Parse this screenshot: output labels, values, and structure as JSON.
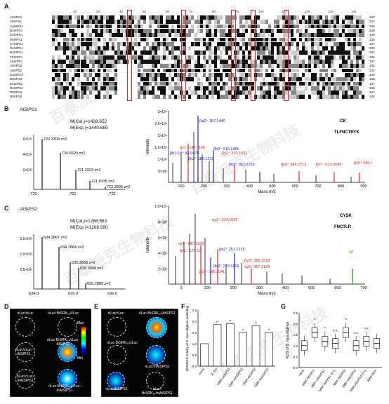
{
  "panels": {
    "A": "A",
    "B": "B",
    "C": "C",
    "D": "D",
    "E": "E",
    "F": "F",
    "G": "G"
  },
  "alignment": {
    "names": [
      "AtSIPS1",
      "AlSIPS1",
      "CgSIPS1",
      "BvSIPS1",
      "EsSIPS1",
      "MlSIPS1",
      "CvSIPS1",
      "RsSIPS1",
      "BoSIPS1",
      "ThSIPS1",
      "TgSIPS1",
      "AtSIPS2",
      "AlSIPS2",
      "CgSIPS2",
      "BrSIPS2",
      "EsSIPS2",
      "RsSIPS2",
      "TsSIPS2",
      "DlSIPS2"
    ],
    "ends": [
      "137",
      "137",
      "138",
      "138",
      "139",
      "138",
      "137",
      "139",
      "137",
      "136",
      "137",
      "136",
      "134",
      "138",
      "138",
      "137",
      "138",
      "137",
      "135"
    ],
    "ruler": [
      "20",
      "30",
      "40",
      "50",
      "60",
      "70",
      "80",
      "90",
      "100",
      "110",
      "120",
      "130",
      "140"
    ]
  },
  "panelB": {
    "protein": "AtSIPS1",
    "mcal": "M(Cal.)=1438.652",
    "mexp": "M(Exp.)=1440.669",
    "iso_peaks": [
      "720.3309 z=2",
      "720.8323 z=2",
      "721.3323 z=2",
      "721.8335 z=2",
      "722.3323 z=2"
    ],
    "iso_ylabels": [
      "6×10⁶",
      "4×10⁶",
      "2×10⁶"
    ],
    "iso_xticks": [
      "720",
      "721",
      "722"
    ],
    "ms_ylabels": [
      "3×10⁴",
      "2.5×10⁴",
      "2×10⁴",
      "1.5×10⁴",
      "1×10⁴",
      "5×10³"
    ],
    "ms_xticks": [
      "100",
      "200",
      "300",
      "400",
      "500",
      "600",
      "700",
      "800",
      "900"
    ],
    "ylabel": "Intensity",
    "xlabel": "Mass m/z",
    "ions": [
      "βa2⁺ 187.1440",
      "βb2⁺ 215.1466",
      "βy2⁺ 310.1831",
      "βb3⁺ 362.2150",
      "βy4⁺ 342.2713",
      "βy7⁺ 613.2645",
      "βy5⁺ 680.3813",
      "βb1-18⁺ 84.0475",
      "βy1⁺ 147.1146",
      "βb2⁺ 180.1219"
    ],
    "seq_top": "CK",
    "seq_bottom": "TLFNCTRYK"
  },
  "panelC": {
    "protein": "AtSIPS2",
    "mcal": "M(Cal.)=1266.563",
    "mexp": "M(Exp.)=1268.580",
    "iso_peaks": [
      "634.2867 z=2",
      "634.7884 z=2",
      "635.2868 z=2",
      "635.3906 z=2",
      "635.7883 z=2"
    ],
    "iso_ylabels": [
      "1.5×10⁶",
      "1.0×10⁶",
      "0.5×10⁶"
    ],
    "iso_xticks": [
      "634.0",
      "635.0",
      "636.0"
    ],
    "ms_ylabels": [
      "1.0×10⁴",
      "8×10³",
      "6×10³",
      "4×10³",
      "2×10³"
    ],
    "ms_xticks": [
      "0",
      "100",
      "200",
      "300",
      "400",
      "500",
      "600",
      "700"
    ],
    "ylabel": "Intensity",
    "xlabel": "Mass m/z",
    "ions": [
      "αy2⁺ 234.1522",
      "αy1⁺ 147.1266",
      "βa2⁺ 251.1211",
      "βy1⁺ 175.12",
      "βb2⁺ 279.1158",
      "βy3⁺ 389.2518",
      "βy2⁺ 288.2041",
      "αy3⁺ 397.2154",
      "M"
    ],
    "seq_top": "CYSK",
    "seq_bottom": "FNCTLR"
  },
  "panelD": {
    "labels": [
      "nLuc-BrSRK₆₀/cLuc",
      "nLuc/cLuc",
      "nLuc-BrSRK₆₀/cLuc-AtSIPS1",
      "nLuc/cLuc-AtSIPS1",
      "nLuc/cLuc-mAtSIPS1",
      "nLuc-BrSRK₆₀/cLuc-mAtSIPS1"
    ],
    "scale_max": "Max",
    "scale_min": "Min"
  },
  "panelE": {
    "labels": [
      "nLuc/cLuc",
      "nLuc-BrSRK₆₀/AtSIPS1",
      "nLuc-BrSRK₆₀/cLuc",
      "nLuc-BrSRK₆₀/mAtSIPS1",
      "nLuc/AtSIPS1",
      "nLuc/mAtSIPS1"
    ]
  },
  "panelF": {
    "ylabel": "βMSRGN activity of B. rapa stigmas (units/mg)",
    "categories": [
      "mock",
      "A. tha",
      "MBP-AtSIPS1",
      "MBP-mAtSIPS1",
      "MBP-AtSIPS2",
      "MBP-mAtSIPS2"
    ],
    "significance": [
      "**",
      "**",
      "**",
      "**",
      "**"
    ],
    "chart_data": {
      "type": "bar",
      "categories": [
        "mock",
        "A. tha",
        "MBP-AtSIPS1",
        "MBP-mAtSIPS1",
        "MBP-AtSIPS2",
        "MBP-mAtSIPS2"
      ],
      "values": [
        1.0,
        1.85,
        1.9,
        1.5,
        1.8,
        1.5
      ],
      "ylim": [
        0,
        2.5
      ]
    }
  },
  "panelG": {
    "ylabel": "ROS of B. rapa stigmas",
    "categories": [
      "mock",
      "MBP-AtSIPS1",
      "MBP-mAtSIPS1",
      "MBP-AtSIPS1 (0.1)",
      "MBP-AtSIPS2",
      "MBP-mAtSIPS2",
      "MBP-AtSIPS2 (0.1)",
      "MBP-PCD"
    ],
    "sig": [
      "**",
      "**",
      "n.s.",
      "**",
      "n.s.",
      "n.s."
    ],
    "chart_data": {
      "type": "box",
      "categories": [
        "mock",
        "MBP-AtSIPS1",
        "MBP-mAtSIPS1",
        "MBP-AtSIPS1 (0.1)",
        "MBP-AtSIPS2",
        "MBP-mAtSIPS2",
        "MBP-AtSIPS2 (0.1)",
        "MBP-PCD"
      ],
      "medians": [
        1.0,
        1.6,
        1.2,
        1.1,
        1.6,
        1.0,
        1.2,
        1.1
      ],
      "ylim": [
        0,
        2.5
      ]
    }
  }
}
